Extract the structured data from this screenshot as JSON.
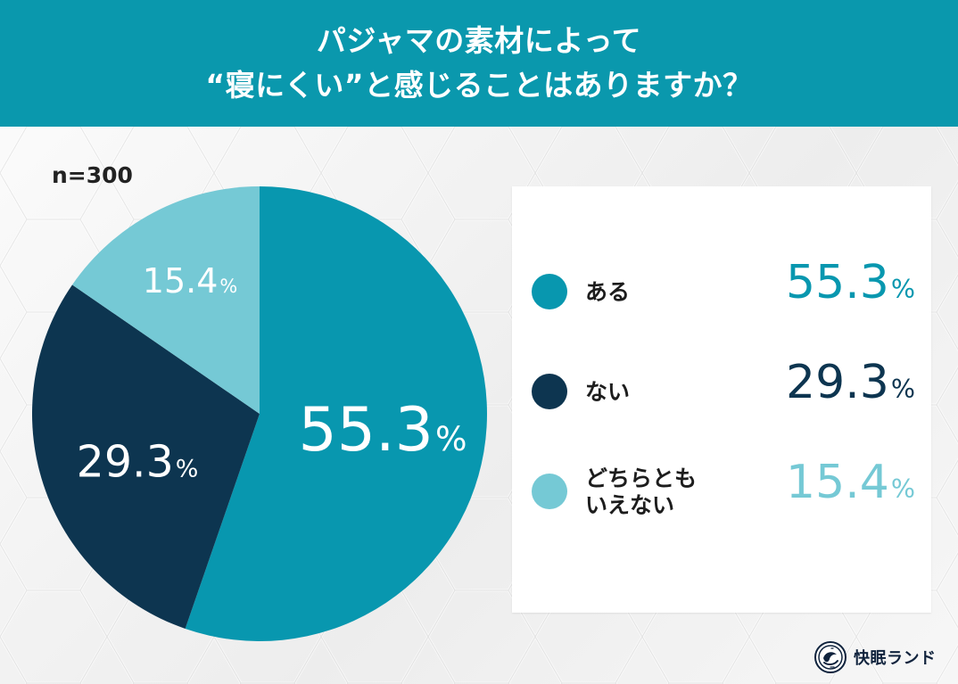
{
  "header": {
    "title_line1": "パジャマの素材によって",
    "title_line2": "“寝にくい”と感じることはありますか？"
  },
  "sample_label": "n=300",
  "chart_data": {
    "type": "pie",
    "title": "パジャマの素材によって “寝にくい”と感じることはありますか？",
    "sample_size": "n=300",
    "legend_position": "right",
    "categories": [
      "ある",
      "ない",
      "どちらとも\nいえない"
    ],
    "values": [
      55.3,
      29.3,
      15.4
    ],
    "value_labels": [
      "55.3%",
      "29.3%",
      "15.4%"
    ],
    "colors": [
      "#0897af",
      "#0d3550",
      "#75c9d5"
    ],
    "label_styles": [
      {
        "value_color": "#0897af"
      },
      {
        "value_color": "#0d3550"
      },
      {
        "value_color": "#75c9d5"
      }
    ]
  },
  "legend": {
    "items": [
      {
        "label": "ある",
        "value": "55.3",
        "unit": "%"
      },
      {
        "label": "ない",
        "value": "29.3",
        "unit": "%"
      },
      {
        "label": "どちらとも\nいえない",
        "value": "15.4",
        "unit": "%"
      }
    ]
  },
  "pie_labels": [
    {
      "value": "55.3",
      "unit": "%"
    },
    {
      "value": "29.3",
      "unit": "%"
    },
    {
      "value": "15.4",
      "unit": "%"
    }
  ],
  "brand": {
    "name": "快眠ランド",
    "logo_icon": "sleep-land-logo-icon"
  }
}
